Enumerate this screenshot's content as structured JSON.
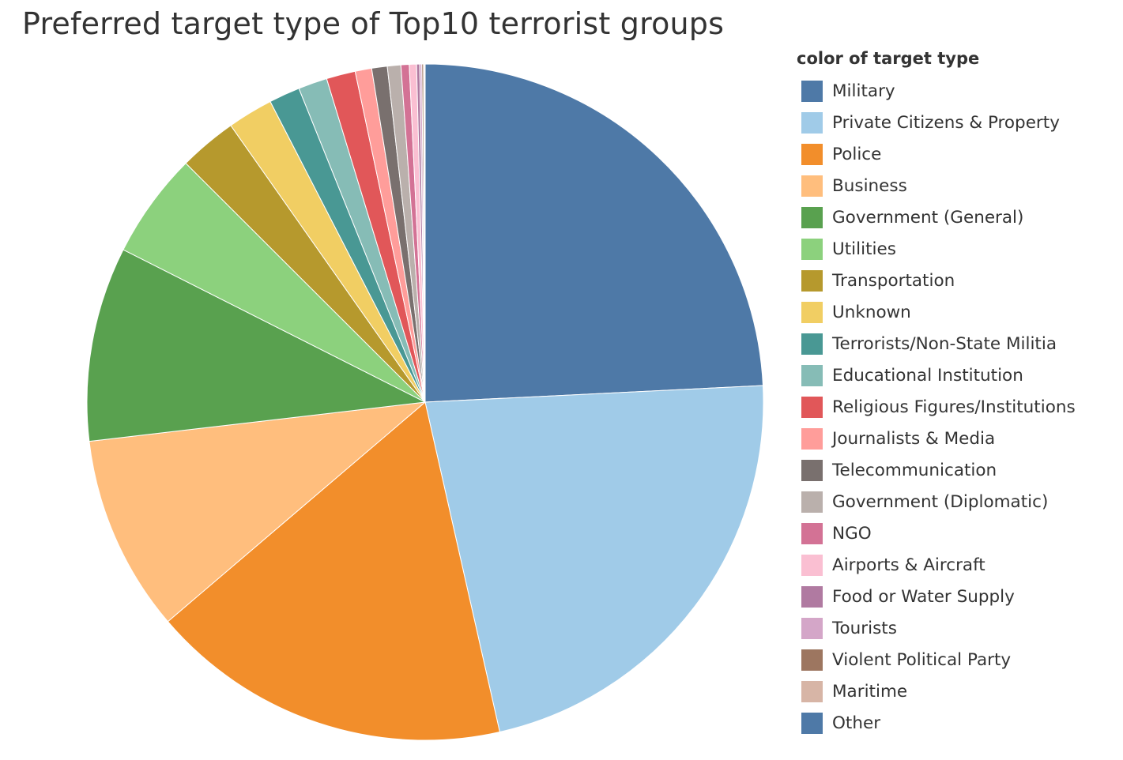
{
  "chart_data": {
    "type": "pie",
    "title": "Preferred target type of Top10 terrorist groups",
    "legend_title": "color of target type",
    "legend_position": "right",
    "start": "top",
    "direction": "clockwise",
    "slices": [
      {
        "label": "Military",
        "value": 24.5,
        "color": "#4e79a7"
      },
      {
        "label": "Private Citizens & Property",
        "value": 22.5,
        "color": "#a0cbe8"
      },
      {
        "label": "Police",
        "value": 17.5,
        "color": "#f28e2b"
      },
      {
        "label": "Business",
        "value": 9.5,
        "color": "#ffbe7d"
      },
      {
        "label": "Government (General)",
        "value": 9.4,
        "color": "#59a14f"
      },
      {
        "label": "Utilities",
        "value": 5.1,
        "color": "#8cd17d"
      },
      {
        "label": "Transportation",
        "value": 2.8,
        "color": "#b6992d"
      },
      {
        "label": "Unknown",
        "value": 2.2,
        "color": "#f1ce63"
      },
      {
        "label": "Terrorists/Non-State Militia",
        "value": 1.5,
        "color": "#499894"
      },
      {
        "label": "Educational Institution",
        "value": 1.4,
        "color": "#86bcb6"
      },
      {
        "label": "Religious Figures/Institutions",
        "value": 1.4,
        "color": "#e15759"
      },
      {
        "label": "Journalists & Media",
        "value": 0.8,
        "color": "#ff9d9a"
      },
      {
        "label": "Telecommunication",
        "value": 0.75,
        "color": "#79706e"
      },
      {
        "label": "Government (Diplomatic)",
        "value": 0.65,
        "color": "#bab0ac"
      },
      {
        "label": "NGO",
        "value": 0.4,
        "color": "#d37295"
      },
      {
        "label": "Airports & Aircraft",
        "value": 0.35,
        "color": "#fabfd2"
      },
      {
        "label": "Food or Water Supply",
        "value": 0.15,
        "color": "#b07aa1"
      },
      {
        "label": "Tourists",
        "value": 0.1,
        "color": "#d4a6c8"
      },
      {
        "label": "Violent Political Party",
        "value": 0.08,
        "color": "#9d7660"
      },
      {
        "label": "Maritime",
        "value": 0.05,
        "color": "#d7b5a6"
      },
      {
        "label": "Other",
        "value": 0.03,
        "color": "#4e79a7"
      }
    ]
  }
}
